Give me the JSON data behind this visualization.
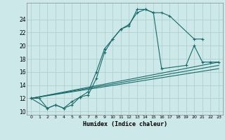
{
  "xlabel": "Humidex (Indice chaleur)",
  "bg_color": "#cce8e8",
  "grid_color": "#b0d0d0",
  "line_color": "#1a6b6b",
  "xlim": [
    -0.5,
    23.5
  ],
  "ylim": [
    9.5,
    26.5
  ],
  "yticks": [
    10,
    12,
    14,
    16,
    18,
    20,
    22,
    24
  ],
  "xticks": [
    0,
    1,
    2,
    3,
    4,
    5,
    6,
    7,
    8,
    9,
    10,
    11,
    12,
    13,
    14,
    15,
    16,
    17,
    18,
    19,
    20,
    21,
    22,
    23
  ],
  "series": [
    {
      "x": [
        0,
        1,
        2,
        3,
        4,
        5,
        6,
        7,
        8,
        9,
        10,
        11,
        12,
        13,
        14,
        15,
        16,
        17,
        20,
        21
      ],
      "y": [
        12,
        12,
        10.5,
        11,
        10.5,
        11.5,
        12.2,
        13,
        16,
        19.5,
        21,
        22.5,
        23.2,
        25.0,
        25.5,
        25.0,
        25.0,
        24.5,
        21.0,
        21.0
      ],
      "marker": true
    },
    {
      "x": [
        0,
        2,
        3,
        4,
        5,
        6,
        7,
        8,
        9,
        10,
        11,
        12,
        13,
        14,
        15,
        16,
        19,
        20,
        21,
        22,
        23
      ],
      "y": [
        12,
        10.5,
        11.0,
        10.5,
        11.0,
        12.2,
        12.5,
        15.0,
        19.0,
        21.0,
        22.5,
        23.0,
        25.5,
        25.5,
        25.0,
        16.5,
        17.0,
        20.0,
        17.5,
        17.5,
        17.5
      ],
      "marker": true
    },
    {
      "x": [
        0,
        23
      ],
      "y": [
        12,
        17.5
      ],
      "marker": false
    },
    {
      "x": [
        0,
        23
      ],
      "y": [
        12,
        17.0
      ],
      "marker": false
    },
    {
      "x": [
        0,
        23
      ],
      "y": [
        12,
        16.5
      ],
      "marker": false
    }
  ]
}
